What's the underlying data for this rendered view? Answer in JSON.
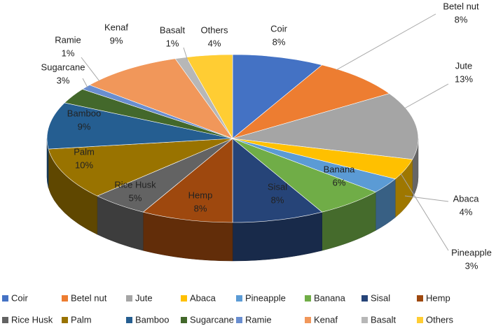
{
  "chart_data": {
    "type": "pie",
    "categories": [
      "Coir",
      "Betel nut",
      "Jute",
      "Abaca",
      "Pineapple",
      "Banana",
      "Sisal",
      "Hemp",
      "Rice Husk",
      "Palm",
      "Bamboo",
      "Sugarcane",
      "Ramie",
      "Kenaf",
      "Basalt",
      "Others"
    ],
    "values": [
      8,
      8,
      13,
      4,
      3,
      6,
      8,
      8,
      5,
      10,
      9,
      3,
      1,
      9,
      1,
      4
    ],
    "value_labels": [
      "8%",
      "8%",
      "13%",
      "4%",
      "3%",
      "6%",
      "8%",
      "8%",
      "5%",
      "10%",
      "9%",
      "3%",
      "1%",
      "9%",
      "1%",
      "4%"
    ],
    "colors": [
      "#4472c4",
      "#ed7d31",
      "#a5a5a5",
      "#ffc000",
      "#5b9bd5",
      "#70ad47",
      "#264478",
      "#9e480e",
      "#636363",
      "#997300",
      "#255e91",
      "#43682b",
      "#698ed0",
      "#f1975a",
      "#b7b7b7",
      "#ffcd33"
    ],
    "legend": "bottom"
  }
}
